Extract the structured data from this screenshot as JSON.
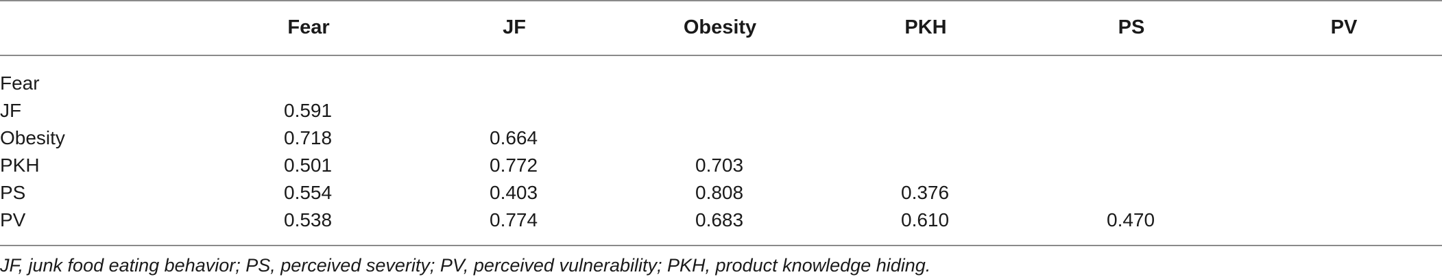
{
  "table": {
    "columns": [
      "Fear",
      "JF",
      "Obesity",
      "PKH",
      "PS",
      "PV"
    ],
    "rows": [
      {
        "label": "Fear",
        "values": []
      },
      {
        "label": "JF",
        "values": [
          "0.591"
        ]
      },
      {
        "label": "Obesity",
        "values": [
          "0.718",
          "0.664"
        ]
      },
      {
        "label": "PKH",
        "values": [
          "0.501",
          "0.772",
          "0.703"
        ]
      },
      {
        "label": "PS",
        "values": [
          "0.554",
          "0.403",
          "0.808",
          "0.376"
        ]
      },
      {
        "label": "PV",
        "values": [
          "0.538",
          "0.774",
          "0.683",
          "0.610",
          "0.470"
        ]
      }
    ]
  },
  "footnote": "JF, junk food eating behavior; PS, perceived severity; PV, perceived vulnerability; PKH, product knowledge hiding."
}
